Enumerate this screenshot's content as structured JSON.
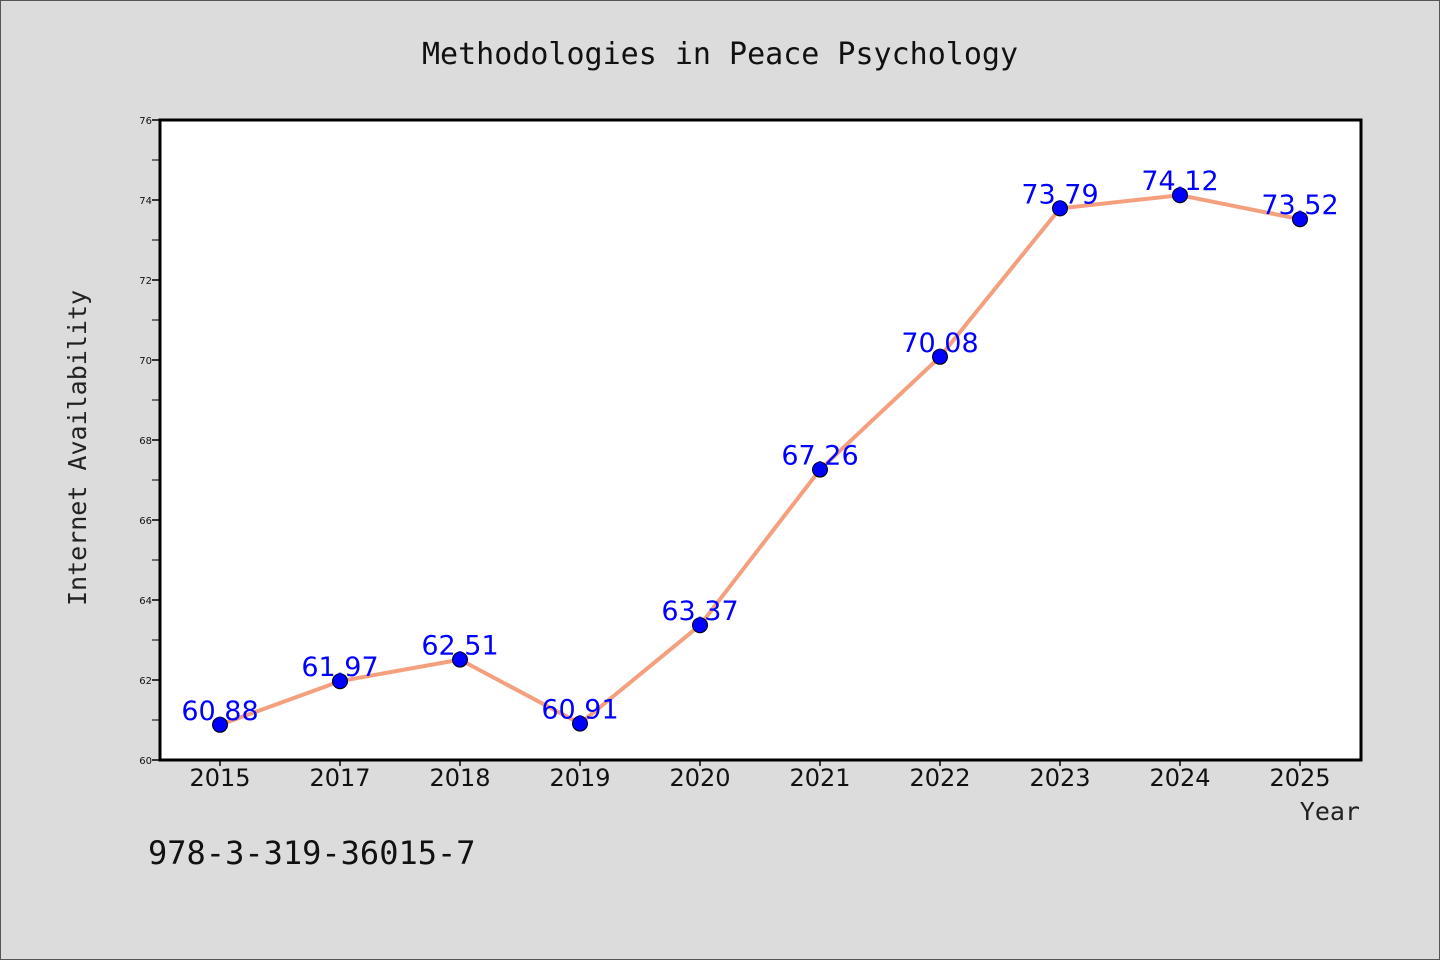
{
  "chart_data": {
    "type": "line",
    "title": "Methodologies in Peace Psychology",
    "xlabel": "Year",
    "ylabel": "Internet Availability",
    "categories": [
      "2015",
      "2017",
      "2018",
      "2019",
      "2020",
      "2021",
      "2022",
      "2023",
      "2024",
      "2025"
    ],
    "series": [
      {
        "values": [
          60.88,
          61.97,
          62.51,
          60.91,
          63.37,
          67.26,
          70.08,
          73.79,
          74.12,
          73.52
        ]
      }
    ],
    "data_labels": [
      "60.88",
      "61.97",
      "62.51",
      "60.91",
      "63.37",
      "67.26",
      "70.08",
      "73.79",
      "74.12",
      "73.52"
    ],
    "ylim": [
      60,
      76
    ],
    "yticks": [
      "60",
      "62",
      "64",
      "66",
      "68",
      "70",
      "72",
      "74",
      "76"
    ],
    "grid": false,
    "legend": "none",
    "colors": {
      "line": "#f4a07f",
      "marker": "#0000ff",
      "label": "#0000ff",
      "background": "#dcdcdc",
      "plot_area": "#ffffff"
    }
  },
  "footer": {
    "isbn": "978-3-319-36015-7"
  }
}
